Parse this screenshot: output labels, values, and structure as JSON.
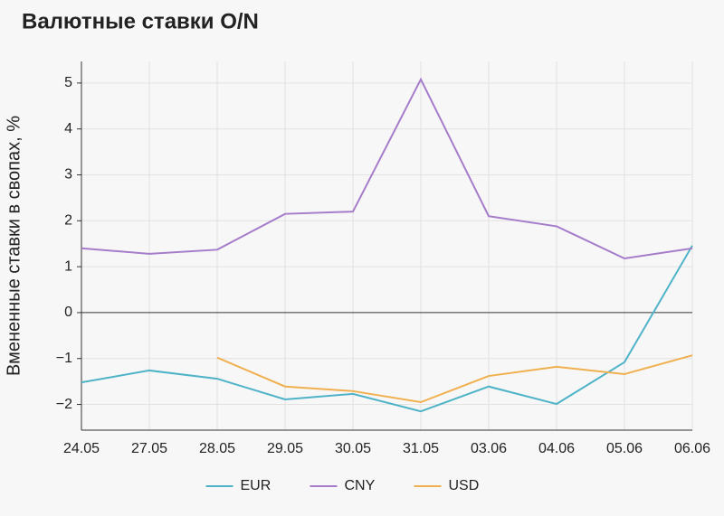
{
  "chart_data": {
    "type": "line",
    "title": "Валютные ставки O/N",
    "y_label": "Вмененные ставки в свопах, %",
    "categories": [
      "24.05",
      "27.05",
      "28.05",
      "29.05",
      "30.05",
      "31.05",
      "03.06",
      "04.06",
      "05.06",
      "06.06"
    ],
    "series": [
      {
        "name": "EUR",
        "color": "#4fb3c8",
        "values": [
          -1.52,
          -1.26,
          -1.44,
          -1.89,
          -1.77,
          -2.15,
          -1.61,
          -1.99,
          -1.08,
          1.46
        ]
      },
      {
        "name": "CNY",
        "color": "#a57cc9",
        "values": [
          1.4,
          1.28,
          1.37,
          2.15,
          2.2,
          5.08,
          2.1,
          1.88,
          1.18,
          1.4
        ]
      },
      {
        "name": "USD",
        "color": "#f0b050",
        "values": [
          null,
          null,
          -0.98,
          -1.61,
          -1.71,
          -1.95,
          -1.38,
          -1.18,
          -1.34,
          -0.93
        ]
      }
    ],
    "ylim": [
      -2.56,
      5.47
    ],
    "yticks": [
      {
        "value": -2,
        "label": "−2"
      },
      {
        "value": -1,
        "label": "−1"
      },
      0,
      1,
      2,
      3,
      4,
      5
    ],
    "grid": true,
    "legend": "bottom"
  }
}
